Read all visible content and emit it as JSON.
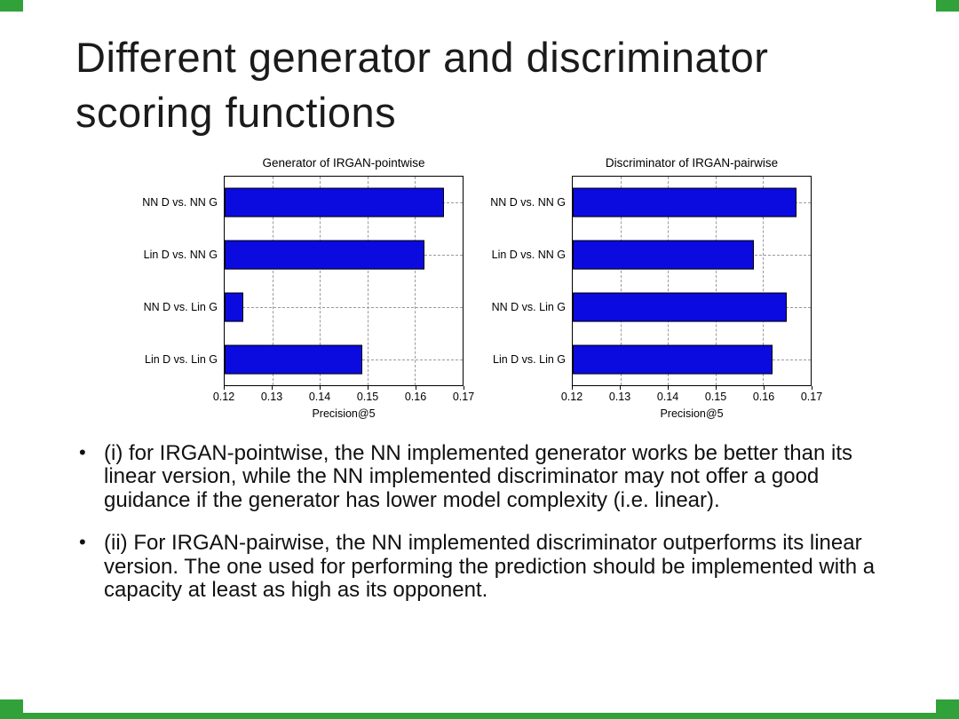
{
  "slide": {
    "title": "Different generator and discriminator scoring functions"
  },
  "bullets": [
    "(i) for IRGAN-pointwise, the NN implemented generator works be better than its linear version, while the NN implemented discriminator may not offer a good guidance if the generator has lower model complexity (i.e. linear).",
    "(ii) For IRGAN-pairwise, the NN implemented discriminator outperforms its linear version. The one used for performing the prediction should be implemented with a capacity at least as high as its opponent."
  ],
  "colors": {
    "bar_blue": "#0b0bdf",
    "accent_green": "#31a13a"
  },
  "chart_data": [
    {
      "type": "bar",
      "orientation": "horizontal",
      "title": "Generator of IRGAN-pointwise",
      "categories": [
        "NN D vs. NN G",
        "Lin D vs. NN G",
        "NN D vs. Lin G",
        "Lin D vs. Lin G"
      ],
      "values": [
        0.166,
        0.162,
        0.124,
        0.149
      ],
      "xlabel": "Precision@5",
      "xlim": [
        0.12,
        0.17
      ],
      "xticks": [
        0.12,
        0.13,
        0.14,
        0.15,
        0.16,
        0.17
      ],
      "bar_color": "#0b0bdf",
      "grid": true,
      "legend": "none"
    },
    {
      "type": "bar",
      "orientation": "horizontal",
      "title": "Discriminator of IRGAN-pairwise",
      "categories": [
        "NN D vs. NN G",
        "Lin D vs. NN G",
        "NN D vs. Lin G",
        "Lin D vs. Lin G"
      ],
      "values": [
        0.167,
        0.158,
        0.165,
        0.162
      ],
      "xlabel": "Precision@5",
      "xlim": [
        0.12,
        0.17
      ],
      "xticks": [
        0.12,
        0.13,
        0.14,
        0.15,
        0.16,
        0.17
      ],
      "bar_color": "#0b0bdf",
      "grid": true,
      "legend": "none"
    }
  ]
}
